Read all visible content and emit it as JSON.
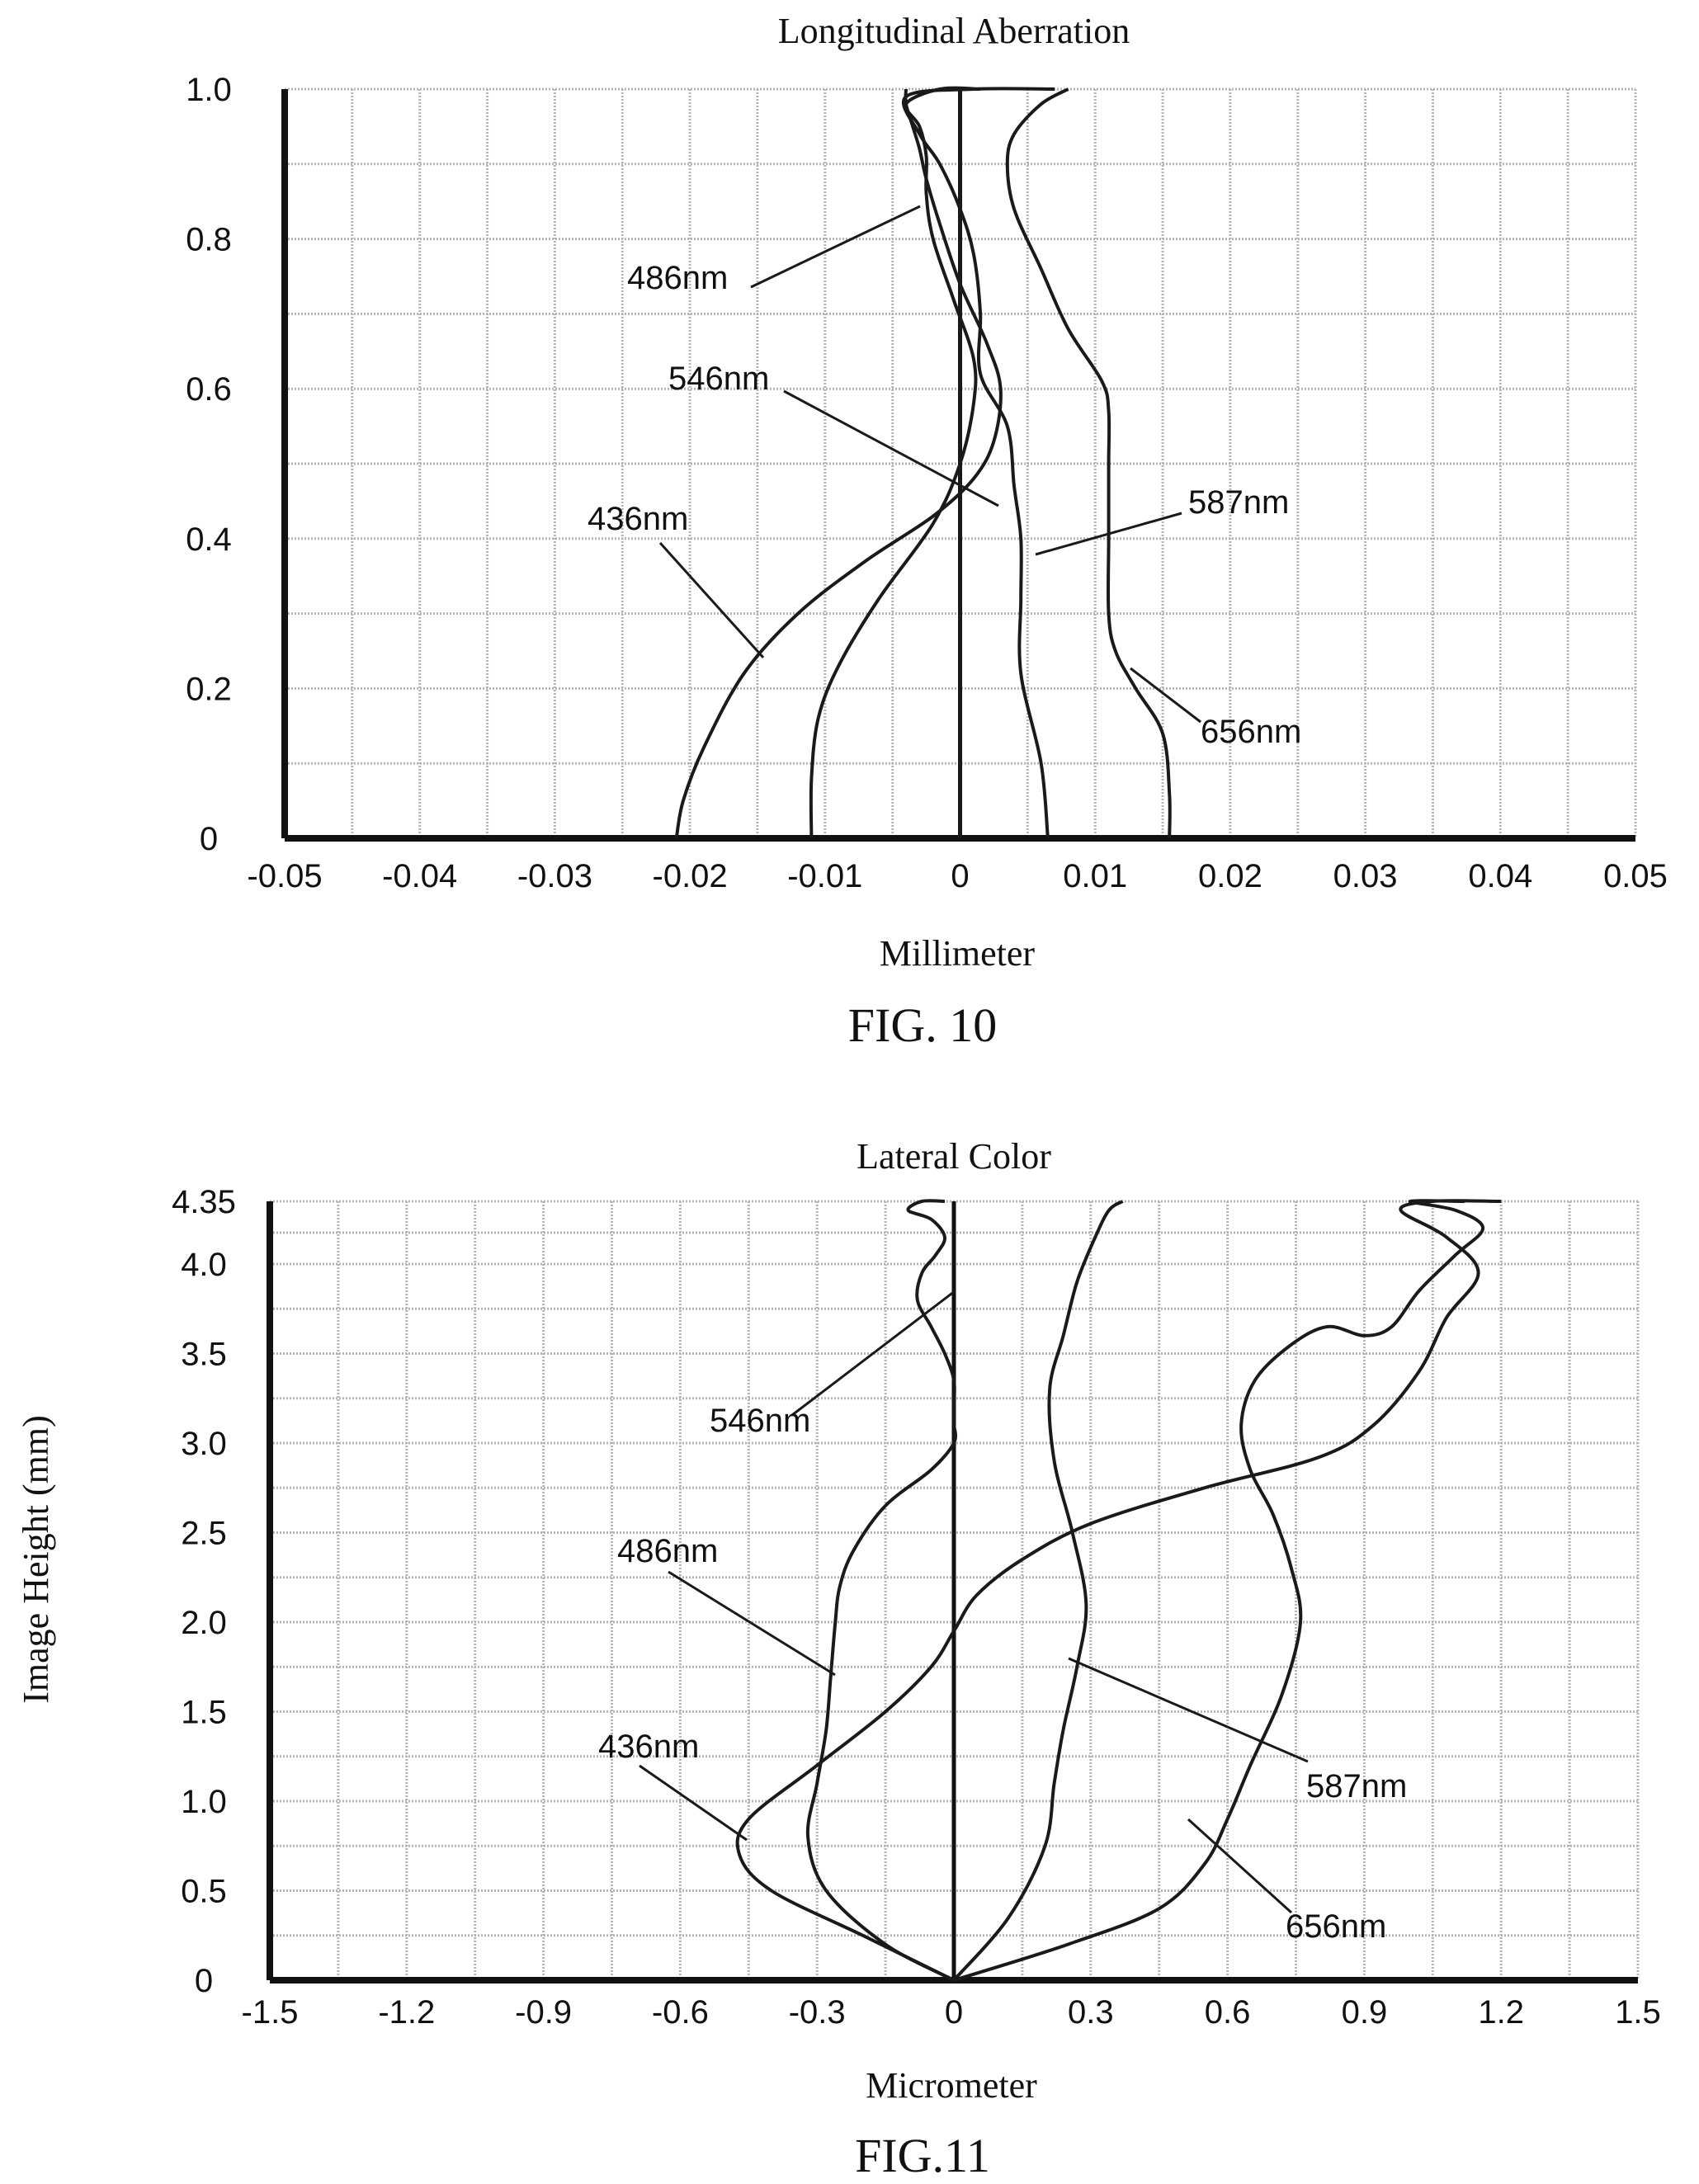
{
  "chart_data": [
    {
      "type": "line",
      "title": "Longitudinal Aberration",
      "xlabel": "Millimeter",
      "ylabel": "",
      "caption": "FIG. 10",
      "xlim": [
        -0.05,
        0.05
      ],
      "ylim": [
        0,
        1.0
      ],
      "xticks": [
        "-0.05",
        "-0.04",
        "-0.03",
        "-0.02",
        "-0.01",
        "0",
        "0.01",
        "0.02",
        "0.03",
        "0.04",
        "0.05"
      ],
      "yticks": [
        "0",
        "0.2",
        "0.4",
        "0.6",
        "0.8",
        "1.0"
      ],
      "grid": true,
      "series": [
        {
          "name": "436nm",
          "x": [
            -0.021,
            -0.0205,
            -0.019,
            -0.016,
            -0.012,
            -0.007,
            -0.002,
            0.001,
            0.0025,
            0.003,
            0.002,
            0.0,
            -0.0015,
            -0.0025,
            -0.003,
            -0.0035,
            -0.004,
            -0.004
          ],
          "y": [
            0.0,
            0.05,
            0.12,
            0.22,
            0.3,
            0.37,
            0.43,
            0.48,
            0.53,
            0.6,
            0.66,
            0.74,
            0.82,
            0.88,
            0.92,
            0.95,
            0.98,
            1.0
          ]
        },
        {
          "name": "486nm",
          "x": [
            -0.011,
            -0.011,
            -0.0105,
            -0.009,
            -0.006,
            -0.002,
            0.0,
            0.001,
            0.001,
            -0.0005,
            -0.002,
            -0.0025,
            -0.0025,
            -0.003,
            -0.004,
            -0.0015,
            0.0015
          ],
          "y": [
            0.0,
            0.08,
            0.16,
            0.23,
            0.32,
            0.42,
            0.5,
            0.58,
            0.64,
            0.72,
            0.8,
            0.86,
            0.91,
            0.95,
            0.98,
            1.0,
            1.0
          ]
        },
        {
          "name": "546nm",
          "x": [
            0.0,
            0.0,
            0.0,
            0.0,
            0.0,
            0.0,
            0.0
          ],
          "y": [
            0.0,
            0.2,
            0.4,
            0.6,
            0.8,
            0.95,
            1.0
          ]
        },
        {
          "name": "587nm",
          "x": [
            0.0065,
            0.006,
            0.0045,
            0.0045,
            0.0045,
            0.004,
            0.0035,
            0.0015,
            0.0015,
            0.001,
            0.0,
            -0.0015,
            -0.003,
            -0.004,
            0.001,
            0.007
          ],
          "y": [
            0.0,
            0.1,
            0.22,
            0.32,
            0.4,
            0.47,
            0.55,
            0.62,
            0.7,
            0.78,
            0.84,
            0.9,
            0.94,
            0.99,
            1.0,
            1.0
          ]
        },
        {
          "name": "656nm",
          "x": [
            0.0155,
            0.0155,
            0.015,
            0.013,
            0.0115,
            0.011,
            0.011,
            0.011,
            0.011,
            0.0105,
            0.008,
            0.006,
            0.004,
            0.0035,
            0.004,
            0.006,
            0.008
          ],
          "y": [
            0.0,
            0.06,
            0.14,
            0.2,
            0.25,
            0.3,
            0.4,
            0.5,
            0.57,
            0.61,
            0.68,
            0.76,
            0.84,
            0.9,
            0.94,
            0.98,
            1.0
          ]
        }
      ]
    },
    {
      "type": "line",
      "title": "Lateral Color",
      "xlabel": "Micrometer",
      "ylabel": "Image Height (mm)",
      "caption": "FIG.11",
      "xlim": [
        -1.5,
        1.5
      ],
      "ylim": [
        0,
        4.35
      ],
      "xticks": [
        "-1.5",
        "-1.2",
        "-0.9",
        "-0.6",
        "-0.3",
        "0",
        "0.3",
        "0.6",
        "0.9",
        "1.2",
        "1.5"
      ],
      "yticks": [
        "0",
        "0.5",
        "1.0",
        "1.5",
        "2.0",
        "2.5",
        "3.0",
        "3.5",
        "4.0",
        "4.35"
      ],
      "grid": true,
      "series": [
        {
          "name": "436nm",
          "x": [
            0.0,
            -0.2,
            -0.4,
            -0.47,
            -0.45,
            -0.3,
            -0.15,
            -0.05,
            0.0,
            0.05,
            0.15,
            0.3,
            0.55,
            0.8,
            0.92,
            1.02,
            1.08,
            1.15,
            1.08,
            0.98,
            1.05,
            1.2
          ],
          "y": [
            0.0,
            0.25,
            0.5,
            0.7,
            0.9,
            1.2,
            1.5,
            1.75,
            1.95,
            2.15,
            2.35,
            2.55,
            2.75,
            2.92,
            3.1,
            3.4,
            3.7,
            3.95,
            4.15,
            4.3,
            4.35,
            4.35
          ]
        },
        {
          "name": "486nm",
          "x": [
            0.0,
            -0.15,
            -0.28,
            -0.32,
            -0.3,
            -0.28,
            -0.27,
            -0.26,
            -0.25,
            -0.22,
            -0.15,
            -0.05,
            0.0,
            0.0
          ],
          "y": [
            0.0,
            0.2,
            0.5,
            0.8,
            1.1,
            1.4,
            1.7,
            2.0,
            2.2,
            2.4,
            2.65,
            2.85,
            3.0,
            3.1
          ]
        },
        {
          "name": "546nm",
          "x": [
            0.0,
            0.0,
            0.0,
            -0.02,
            -0.05,
            -0.08,
            -0.07,
            -0.04,
            -0.02,
            -0.05,
            -0.1,
            -0.07,
            -0.02
          ],
          "y": [
            3.1,
            3.2,
            3.35,
            3.5,
            3.65,
            3.8,
            3.95,
            4.05,
            4.15,
            4.25,
            4.3,
            4.35,
            4.35
          ]
        },
        {
          "name": "587nm",
          "x": [
            0.0,
            0.12,
            0.2,
            0.22,
            0.24,
            0.27,
            0.29,
            0.26,
            0.22,
            0.21,
            0.24,
            0.27,
            0.31,
            0.34,
            0.37
          ],
          "y": [
            0.0,
            0.35,
            0.75,
            1.1,
            1.4,
            1.75,
            2.1,
            2.5,
            2.9,
            3.3,
            3.6,
            3.9,
            4.15,
            4.3,
            4.35
          ]
        },
        {
          "name": "656nm",
          "x": [
            0.0,
            0.25,
            0.45,
            0.55,
            0.6,
            0.65,
            0.72,
            0.76,
            0.74,
            0.7,
            0.65,
            0.63,
            0.66,
            0.74,
            0.82,
            0.9,
            0.96,
            1.02,
            1.1,
            1.16,
            1.1,
            1.0,
            1.12
          ],
          "y": [
            0.0,
            0.2,
            0.4,
            0.65,
            0.9,
            1.2,
            1.6,
            2.0,
            2.3,
            2.6,
            2.85,
            3.1,
            3.35,
            3.55,
            3.65,
            3.6,
            3.65,
            3.85,
            4.05,
            4.2,
            4.3,
            4.35,
            4.35
          ]
        }
      ]
    }
  ]
}
